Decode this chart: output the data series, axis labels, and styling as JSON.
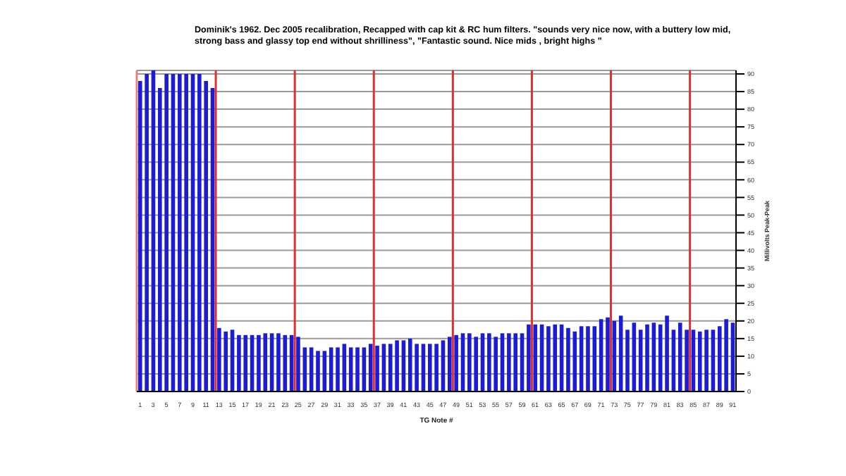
{
  "chart_data": {
    "type": "bar",
    "title": "Dominik's 1962.  Dec 2005 recalibration, Recapped with cap kit & RC hum filters. \"sounds very nice now, with a buttery low mid, strong bass and glassy top end without shrilliness\", \"Fantastic sound. Nice mids , bright highs \"",
    "xlabel": "TG Note #",
    "ylabel": "Millivolts Peak-Peak",
    "x": [
      1,
      2,
      3,
      4,
      5,
      6,
      7,
      8,
      9,
      10,
      11,
      12,
      13,
      14,
      15,
      16,
      17,
      18,
      19,
      20,
      21,
      22,
      23,
      24,
      25,
      26,
      27,
      28,
      29,
      30,
      31,
      32,
      33,
      34,
      35,
      36,
      37,
      38,
      39,
      40,
      41,
      42,
      43,
      44,
      45,
      46,
      47,
      48,
      49,
      50,
      51,
      52,
      53,
      54,
      55,
      56,
      57,
      58,
      59,
      60,
      61,
      62,
      63,
      64,
      65,
      66,
      67,
      68,
      69,
      70,
      71,
      72,
      73,
      74,
      75,
      76,
      77,
      78,
      79,
      80,
      81,
      82,
      83,
      84,
      85,
      86,
      87,
      88,
      89,
      90,
      91
    ],
    "values": [
      88,
      90,
      91,
      86,
      90,
      90,
      90,
      90,
      90,
      90,
      88,
      86,
      18,
      17,
      17.5,
      16,
      16,
      16,
      16,
      16.5,
      16.5,
      16.5,
      16,
      16,
      15.5,
      12.5,
      12.5,
      11.5,
      11.5,
      12.5,
      12.5,
      13.5,
      12.5,
      12.5,
      12.5,
      13.5,
      13,
      13.5,
      13.5,
      14.5,
      14.5,
      15,
      13.5,
      13.5,
      13.5,
      13.5,
      14.5,
      15.5,
      16,
      16.5,
      16.5,
      15.5,
      16.5,
      16.5,
      15.5,
      16.5,
      16.5,
      16.5,
      16.5,
      19,
      19,
      19,
      18.5,
      19,
      19,
      18,
      17,
      18.5,
      18.5,
      18.5,
      20.5,
      21,
      20,
      21.5,
      17.5,
      19.5,
      17.5,
      19,
      19.5,
      19,
      21.5,
      17.5,
      19.5,
      17.5,
      17.5,
      17,
      17.5,
      17.5,
      18.5,
      20.5,
      19.5
    ],
    "color": "#1c1cd6",
    "xlim": [
      0.5,
      91.5
    ],
    "xticks": [
      1,
      3,
      5,
      7,
      9,
      11,
      13,
      15,
      17,
      19,
      21,
      23,
      25,
      27,
      29,
      31,
      33,
      35,
      37,
      39,
      41,
      43,
      45,
      47,
      49,
      51,
      53,
      55,
      57,
      59,
      61,
      63,
      65,
      67,
      69,
      71,
      73,
      75,
      77,
      79,
      81,
      83,
      85,
      87,
      89,
      91
    ],
    "ylim": [
      0,
      91
    ],
    "yticks": [
      0,
      5,
      10,
      15,
      20,
      25,
      30,
      35,
      40,
      45,
      50,
      55,
      60,
      65,
      70,
      75,
      80,
      85,
      90
    ],
    "grid": "y",
    "ref_lines": [
      {
        "axis": "x",
        "value": 0.5,
        "color": "#e88080"
      },
      {
        "axis": "x",
        "value": 12.5,
        "color": "#e03030"
      },
      {
        "axis": "x",
        "value": 24.5,
        "color": "#e03030"
      },
      {
        "axis": "x",
        "value": 36.5,
        "color": "#e03030"
      },
      {
        "axis": "x",
        "value": 48.5,
        "color": "#e03030"
      },
      {
        "axis": "x",
        "value": 60.5,
        "color": "#e03030"
      },
      {
        "axis": "x",
        "value": 72.5,
        "color": "#e03030"
      },
      {
        "axis": "x",
        "value": 84.5,
        "color": "#e03030"
      }
    ]
  }
}
